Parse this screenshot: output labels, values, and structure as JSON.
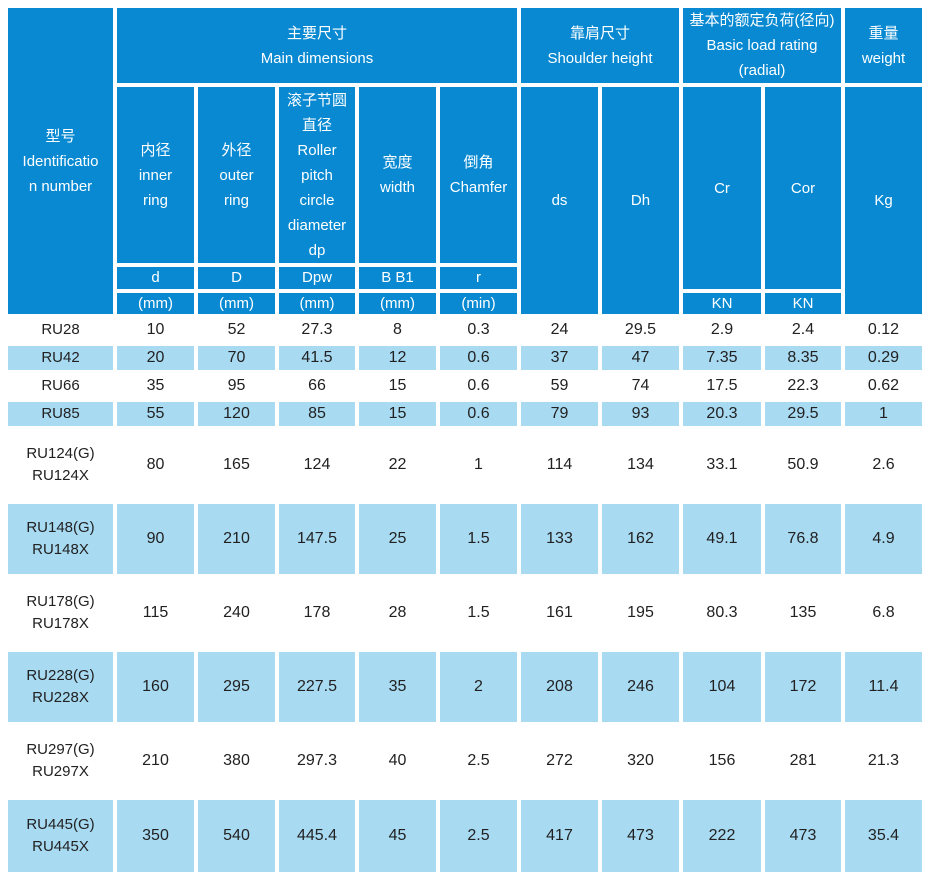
{
  "colors": {
    "header_bg": "#0889d1",
    "row_alt_bg": "#a8daf2",
    "text_dark": "#212121",
    "text_light": "#ffffff"
  },
  "table": {
    "header": {
      "id_label": "型号\nIdentificatio\nn number",
      "groups": [
        {
          "label": "主要尺寸\nMain dimensions"
        },
        {
          "label": "靠肩尺寸\nShoulder height"
        },
        {
          "label": "基本的额定负荷(径向)\nBasic load rating\n(radial)"
        },
        {
          "label": "重量\nweight"
        }
      ],
      "sub": [
        "内径\ninner\nring",
        "外径\nouter\nring",
        "滚子节圆\n直径\nRoller\npitch\ncircle\ndiameter\ndp",
        "宽度\nwidth",
        "倒角\nChamfer",
        "ds",
        "Dh",
        "Cr",
        "Cor",
        "Kg"
      ],
      "symbols": [
        "d",
        "D",
        "Dpw",
        "B B1",
        "r"
      ],
      "units": [
        "(mm)",
        "(mm)",
        "(mm)",
        "(mm)",
        "(min)",
        "KN",
        "KN"
      ]
    },
    "rows": [
      {
        "model": "RU28",
        "highlight": false,
        "values": [
          "10",
          "52",
          "27.3",
          "8",
          "0.3",
          "24",
          "29.5",
          "2.9",
          "2.4",
          "0.12"
        ]
      },
      {
        "model": "RU42",
        "highlight": true,
        "values": [
          "20",
          "70",
          "41.5",
          "12",
          "0.6",
          "37",
          "47",
          "7.35",
          "8.35",
          "0.29"
        ]
      },
      {
        "model": "RU66",
        "highlight": false,
        "values": [
          "35",
          "95",
          "66",
          "15",
          "0.6",
          "59",
          "74",
          "17.5",
          "22.3",
          "0.62"
        ]
      },
      {
        "model": "RU85",
        "highlight": true,
        "values": [
          "55",
          "120",
          "85",
          "15",
          "0.6",
          "79",
          "93",
          "20.3",
          "29.5",
          "1"
        ]
      },
      {
        "model": "RU124(G)\nRU124X",
        "highlight": false,
        "values": [
          "80",
          "165",
          "124",
          "22",
          "1",
          "114",
          "134",
          "33.1",
          "50.9",
          "2.6"
        ]
      },
      {
        "model": "RU148(G)\nRU148X",
        "highlight": true,
        "values": [
          "90",
          "210",
          "147.5",
          "25",
          "1.5",
          "133",
          "162",
          "49.1",
          "76.8",
          "4.9"
        ]
      },
      {
        "model": "RU178(G)\nRU178X",
        "highlight": false,
        "values": [
          "115",
          "240",
          "178",
          "28",
          "1.5",
          "161",
          "195",
          "80.3",
          "135",
          "6.8"
        ]
      },
      {
        "model": "RU228(G)\nRU228X",
        "highlight": true,
        "values": [
          "160",
          "295",
          "227.5",
          "35",
          "2",
          "208",
          "246",
          "104",
          "172",
          "11.4"
        ]
      },
      {
        "model": "RU297(G)\nRU297X",
        "highlight": false,
        "values": [
          "210",
          "380",
          "297.3",
          "40",
          "2.5",
          "272",
          "320",
          "156",
          "281",
          "21.3"
        ]
      },
      {
        "model": "RU445(G)\nRU445X",
        "highlight": true,
        "values": [
          "350",
          "540",
          "445.4",
          "45",
          "2.5",
          "417",
          "473",
          "222",
          "473",
          "35.4"
        ]
      }
    ]
  }
}
